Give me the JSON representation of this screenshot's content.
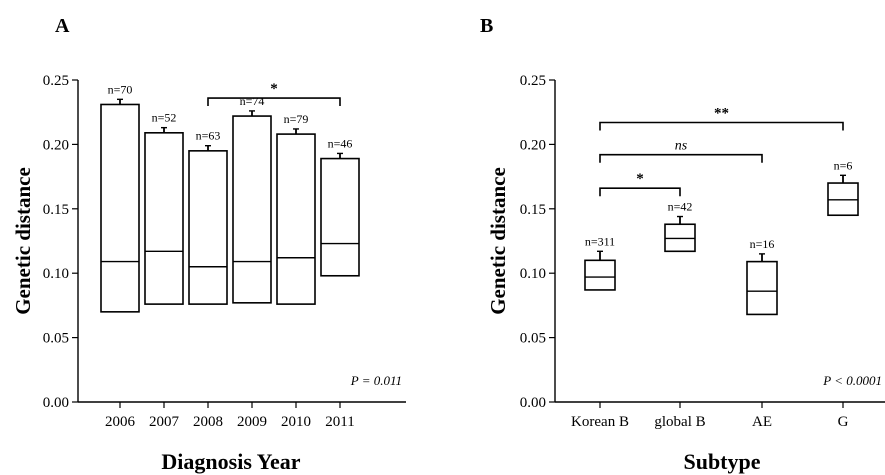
{
  "chart_data": [
    {
      "panel_label": "A",
      "type": "box",
      "xlabel": "Diagnosis Year",
      "ylabel": "Genetic distance",
      "categories": [
        "2006",
        "2007",
        "2008",
        "2009",
        "2010",
        "2011"
      ],
      "boxes": [
        {
          "n_label": "n=70",
          "q1": 0.07,
          "median": 0.109,
          "q3": 0.231,
          "whisker_high": 0.235
        },
        {
          "n_label": "n=52",
          "q1": 0.076,
          "median": 0.117,
          "q3": 0.209,
          "whisker_high": 0.213
        },
        {
          "n_label": "n=63",
          "q1": 0.076,
          "median": 0.105,
          "q3": 0.195,
          "whisker_high": 0.199
        },
        {
          "n_label": "n=74",
          "q1": 0.077,
          "median": 0.109,
          "q3": 0.222,
          "whisker_high": 0.226
        },
        {
          "n_label": "n=79",
          "q1": 0.076,
          "median": 0.112,
          "q3": 0.208,
          "whisker_high": 0.212
        },
        {
          "n_label": "n=46",
          "q1": 0.098,
          "median": 0.123,
          "q3": 0.189,
          "whisker_high": 0.193
        }
      ],
      "ylim": [
        0,
        0.25
      ],
      "yticks": [
        "0.00",
        "0.05",
        "0.10",
        "0.15",
        "0.20",
        "0.25"
      ],
      "significance": [
        {
          "from": "2008",
          "to": "2011",
          "label": "*",
          "level": 0.236
        }
      ],
      "p_value": "P = 0.011"
    },
    {
      "panel_label": "B",
      "type": "box",
      "xlabel": "Subtype",
      "ylabel": "Genetic distance",
      "categories": [
        "Korean B",
        "global B",
        "AE",
        "G"
      ],
      "boxes": [
        {
          "n_label": "n=311",
          "q1": 0.087,
          "median": 0.097,
          "q3": 0.11,
          "whisker_high": 0.117
        },
        {
          "n_label": "n=42",
          "q1": 0.117,
          "median": 0.127,
          "q3": 0.138,
          "whisker_high": 0.144
        },
        {
          "n_label": "n=16",
          "q1": 0.068,
          "median": 0.086,
          "q3": 0.109,
          "whisker_high": 0.115
        },
        {
          "n_label": "n=6",
          "q1": 0.145,
          "median": 0.157,
          "q3": 0.17,
          "whisker_high": 0.176
        }
      ],
      "ylim": [
        0,
        0.25
      ],
      "yticks": [
        "0.00",
        "0.05",
        "0.10",
        "0.15",
        "0.20",
        "0.25"
      ],
      "significance": [
        {
          "from": "Korean B",
          "to": "G",
          "label": "**",
          "level": 0.217
        },
        {
          "from": "Korean B",
          "to": "AE",
          "label": "ns",
          "level": 0.192
        },
        {
          "from": "Korean B",
          "to": "global B",
          "label": "*",
          "level": 0.166
        }
      ],
      "p_value": "P < 0.0001"
    }
  ]
}
